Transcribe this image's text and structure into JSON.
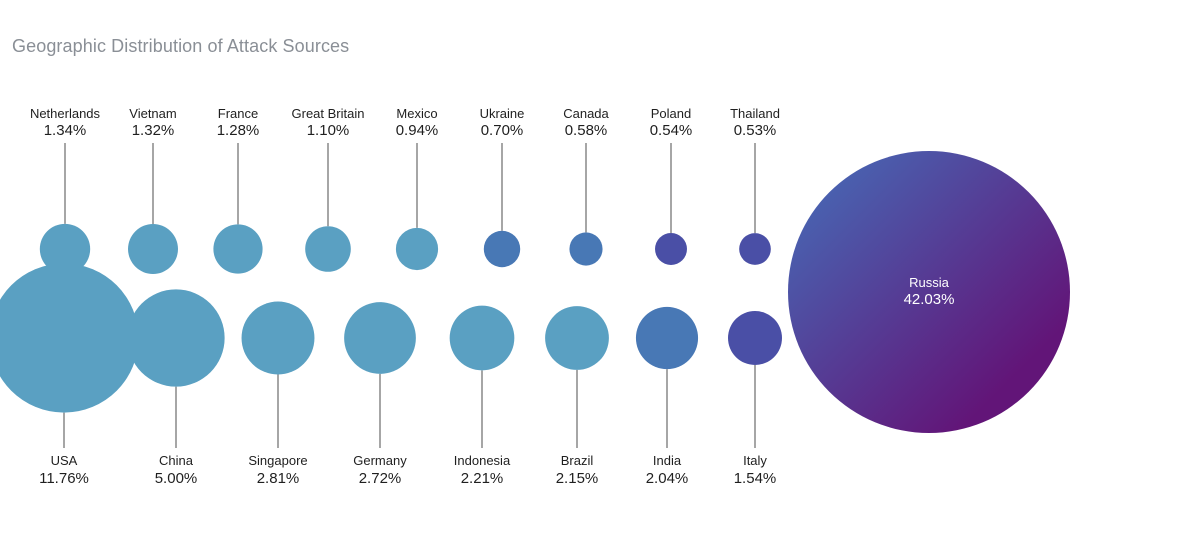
{
  "chart_data": {
    "type": "bubble",
    "title": "Geographic Distribution of Attack Sources",
    "unit": "%",
    "colors": {
      "light": "#5aa0c2",
      "mid": "#4878b5",
      "dark": "#4a4fa6",
      "stem": "#4d4d4d",
      "russia_start": "#4a5fae",
      "russia_end": "#621578"
    },
    "top_row": [
      {
        "name": "Netherlands",
        "value": 1.34,
        "label": "1.34%"
      },
      {
        "name": "Vietnam",
        "value": 1.32,
        "label": "1.32%"
      },
      {
        "name": "France",
        "value": 1.28,
        "label": "1.28%"
      },
      {
        "name": "Great Britain",
        "value": 1.1,
        "label": "1.10%"
      },
      {
        "name": "Mexico",
        "value": 0.94,
        "label": "0.94%"
      },
      {
        "name": "Ukraine",
        "value": 0.7,
        "label": "0.70%"
      },
      {
        "name": "Canada",
        "value": 0.58,
        "label": "0.58%"
      },
      {
        "name": "Poland",
        "value": 0.54,
        "label": "0.54%"
      },
      {
        "name": "Thailand",
        "value": 0.53,
        "label": "0.53%"
      }
    ],
    "bottom_row": [
      {
        "name": "USA",
        "value": 11.76,
        "label": "11.76%"
      },
      {
        "name": "China",
        "value": 5.0,
        "label": "5.00%"
      },
      {
        "name": "Singapore",
        "value": 2.81,
        "label": "2.81%"
      },
      {
        "name": "Germany",
        "value": 2.72,
        "label": "2.72%"
      },
      {
        "name": "Indonesia",
        "value": 2.21,
        "label": "2.21%"
      },
      {
        "name": "Brazil",
        "value": 2.15,
        "label": "2.15%"
      },
      {
        "name": "India",
        "value": 2.04,
        "label": "2.04%"
      },
      {
        "name": "Italy",
        "value": 1.54,
        "label": "1.54%"
      }
    ],
    "highlight": {
      "name": "Russia",
      "value": 42.03,
      "label": "42.03%"
    }
  }
}
